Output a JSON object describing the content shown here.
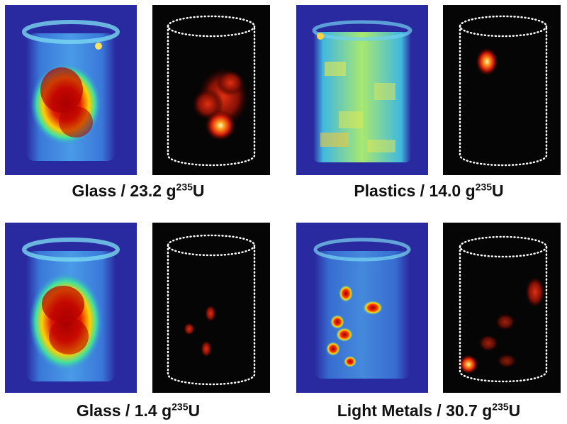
{
  "figure": {
    "panels": [
      {
        "caption": {
          "material": "Glass",
          "separator": " / ",
          "mass": "23.2 g",
          "isotope_mass_number": "235",
          "element": "U"
        },
        "images": {
          "transmission": "transmission-tomography-image",
          "emission": "emission-tomography-image"
        }
      },
      {
        "caption": {
          "material": "Plastics",
          "separator": " / ",
          "mass": "14.0 g",
          "isotope_mass_number": "235",
          "element": "U"
        },
        "images": {
          "transmission": "transmission-tomography-image",
          "emission": "emission-tomography-image"
        }
      },
      {
        "caption": {
          "material": "Glass",
          "separator": " / ",
          "mass": "1.4 g",
          "isotope_mass_number": "235",
          "element": "U"
        },
        "images": {
          "transmission": "transmission-tomography-image",
          "emission": "emission-tomography-image"
        }
      },
      {
        "caption": {
          "material": "Light Metals",
          "separator": " / ",
          "mass": "30.7 g",
          "isotope_mass_number": "235",
          "element": "U"
        },
        "images": {
          "transmission": "transmission-tomography-image",
          "emission": "emission-tomography-image"
        }
      }
    ]
  },
  "colors": {
    "transmission_background": "#2a2aa0",
    "emission_background": "#050505",
    "outline": "#ffffff",
    "caption_text": "#111111"
  }
}
